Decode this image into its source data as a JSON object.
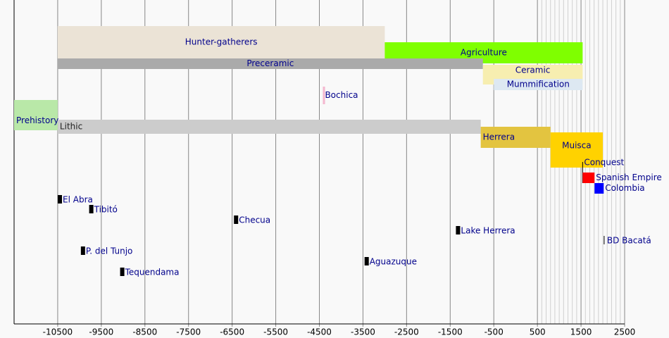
{
  "chart_data": {
    "type": "timeline",
    "xlim": [
      -11500,
      2500
    ],
    "xticks": [
      -10500,
      -9500,
      -8500,
      -7500,
      -6500,
      -5500,
      -4500,
      -3500,
      -2500,
      -1500,
      -500,
      500,
      1500,
      2500
    ],
    "minor_xticks": [
      600,
      700,
      800,
      900,
      1000,
      1100,
      1200,
      1300,
      1400,
      1600,
      1700,
      1800,
      1900,
      2000,
      2100,
      2200,
      2300,
      2400
    ],
    "bars": [
      {
        "label": "Hunter-gatherers",
        "start": -10500,
        "end": -3000,
        "color": "#ebe3d6"
      },
      {
        "label": "Agriculture",
        "start": -3000,
        "end": 1537,
        "color": "#7fff00"
      },
      {
        "label": "Preceramic",
        "start": -10500,
        "end": -750,
        "color": "#aaaaaa"
      },
      {
        "label": "Ceramic",
        "start": -750,
        "end": 1537,
        "color": "#f7eeb0"
      },
      {
        "label": "Mummification",
        "start": -500,
        "end": 1537,
        "color": "#dde8f2"
      },
      {
        "label": "Bochica",
        "start": -4420,
        "end": -4370,
        "color": "#f4b8d0"
      },
      {
        "label": "Prehistory",
        "start": -11500,
        "end": -10500,
        "color": "#b9e8a8"
      },
      {
        "label": "Lithic",
        "start": -10500,
        "end": -800,
        "color": "#cccccc"
      },
      {
        "label": "Herrera",
        "start": -800,
        "end": 800,
        "color": "#e3c440"
      },
      {
        "label": "Muisca",
        "start": 800,
        "end": 2000,
        "color": "#ffd200"
      },
      {
        "label": "Conquest",
        "start": 1537,
        "end": 1537,
        "color": "#000000"
      },
      {
        "label": "Spanish Empire",
        "start": 1537,
        "end": 1810,
        "color": "#ff0000"
      },
      {
        "label": "Colombia",
        "start": 1810,
        "end": 2020,
        "color": "#0000ff"
      }
    ],
    "events": [
      {
        "label": "El Abra",
        "x": -10450
      },
      {
        "label": "Tibitó",
        "x": -9730
      },
      {
        "label": "Checua",
        "x": -6410
      },
      {
        "label": "Lake Herrera",
        "x": -1320
      },
      {
        "label": "BD Bacatá",
        "x": 2030
      },
      {
        "label": "P. del Tunjo",
        "x": -9920
      },
      {
        "label": "Aguazuque",
        "x": -3415
      },
      {
        "label": "Tequendama",
        "x": -9020
      }
    ]
  }
}
